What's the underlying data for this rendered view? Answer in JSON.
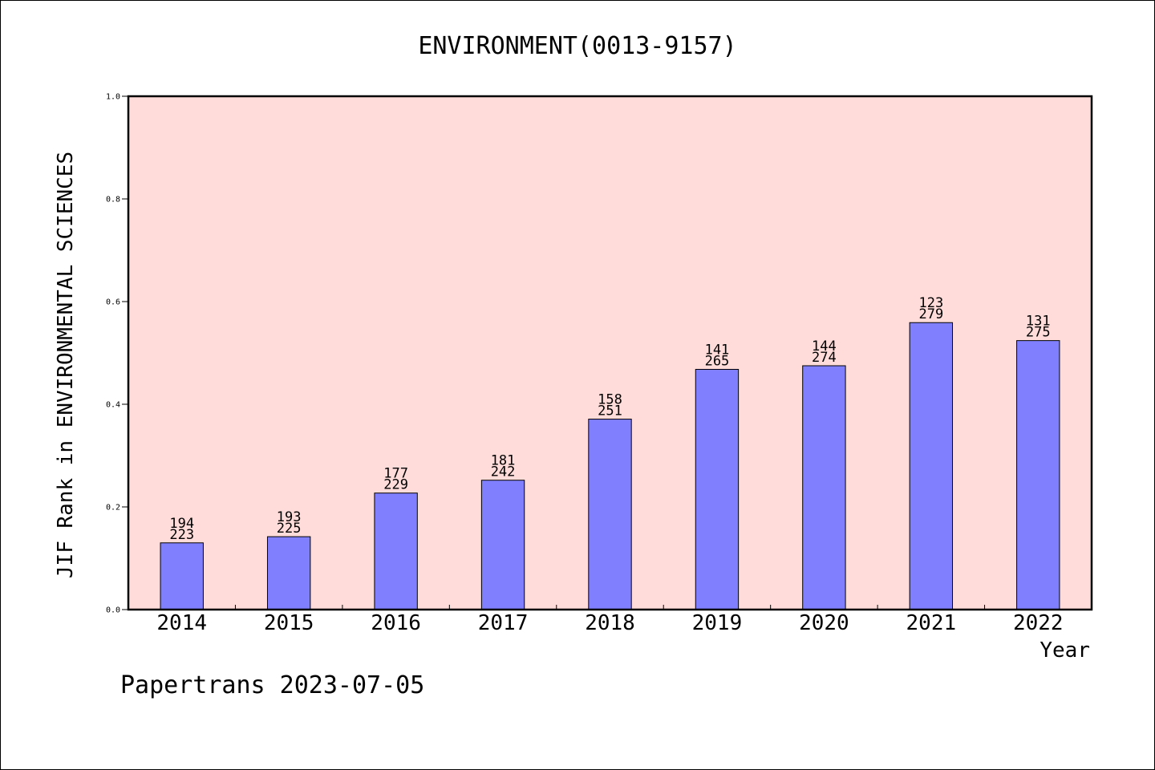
{
  "chart_data": {
    "type": "bar",
    "title": "ENVIRONMENT(0013-9157)",
    "xlabel": "Year",
    "ylabel": "JIF Rank in ENVIRONMENTAL SCIENCES",
    "ylim": [
      0.0,
      1.0
    ],
    "yticks": [
      "0.0",
      "0.2",
      "0.4",
      "0.6",
      "0.8",
      "1.0"
    ],
    "grid": false,
    "colors": {
      "bar": "#8080ff",
      "plot_background": "#ffdbd9",
      "axis": "#000000"
    },
    "categories": [
      "2014",
      "2015",
      "2016",
      "2017",
      "2018",
      "2019",
      "2020",
      "2021",
      "2022"
    ],
    "values": [
      0.13,
      0.142,
      0.227,
      0.252,
      0.371,
      0.468,
      0.475,
      0.559,
      0.524
    ],
    "labels_top": [
      "194",
      "193",
      "177",
      "181",
      "158",
      "141",
      "144",
      "123",
      "131"
    ],
    "labels_bottom": [
      "223",
      "225",
      "229",
      "242",
      "251",
      "265",
      "274",
      "279",
      "275"
    ]
  },
  "footer": "Papertrans 2023-07-05"
}
